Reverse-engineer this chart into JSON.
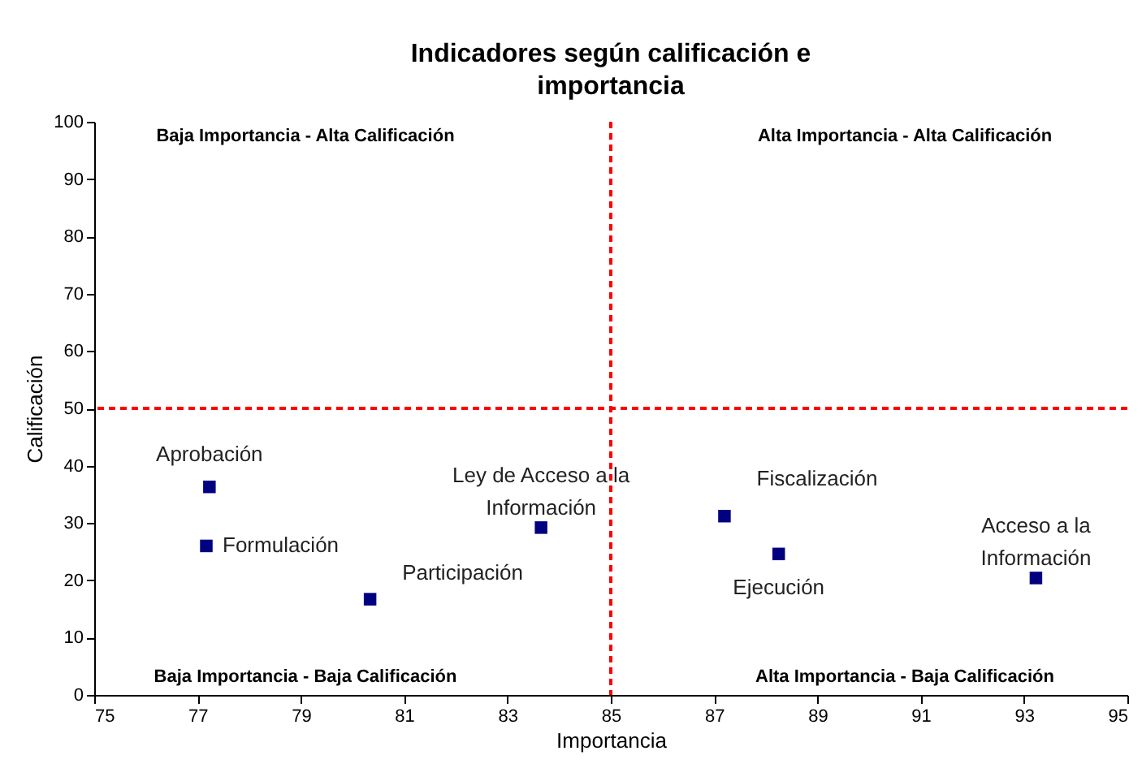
{
  "chart_data": {
    "type": "scatter",
    "title": "Indicadores según calificación e\nimportancia",
    "xlabel": "Importancia",
    "ylabel": "Calificación",
    "x": [
      77.23,
      77.17,
      80.34,
      83.65,
      87.2,
      88.25,
      93.23
    ],
    "series": [
      {
        "color": "#000080",
        "values": [
          36.3,
          26.0,
          16.7,
          29.2,
          31.2,
          24.6,
          20.4
        ]
      }
    ],
    "xlim": [
      75,
      95
    ],
    "xticks": [
      75,
      77,
      79,
      81,
      83,
      85,
      87,
      89,
      91,
      93,
      95
    ],
    "ylim": [
      0,
      100
    ],
    "yticks": [
      0,
      10,
      20,
      30,
      40,
      50,
      60,
      70,
      80,
      90,
      100
    ],
    "marker": "square",
    "grid": false,
    "ref_lines": [
      {
        "axis": "x",
        "value": 85,
        "color": "#ff0000",
        "line_style": "dashed"
      },
      {
        "axis": "y",
        "value": 50,
        "color": "#ff0000",
        "line_style": "dashed"
      }
    ],
    "annotations": [
      {
        "text": "Aprobación",
        "x": 77.23,
        "y": 36.3
      },
      {
        "text": "Formulación",
        "x": 77.17,
        "y": 26.0
      },
      {
        "text": "Participación",
        "x": 80.34,
        "y": 16.7
      },
      {
        "text": "Ley de Acceso a la\nInformación",
        "x": 83.65,
        "y": 29.2
      },
      {
        "text": "Fiscalización",
        "x": 87.2,
        "y": 31.2
      },
      {
        "text": "Ejecución",
        "x": 88.25,
        "y": 24.6
      },
      {
        "text": "Acceso a la\nInformación",
        "x": 93.23,
        "y": 20.4
      },
      "Baja Importancia - Alta Calificación",
      "Alta Importancia - Alta Calificación",
      "Baja Importancia - Baja Calificación",
      "Alta Importancia - Baja Calificación"
    ]
  }
}
